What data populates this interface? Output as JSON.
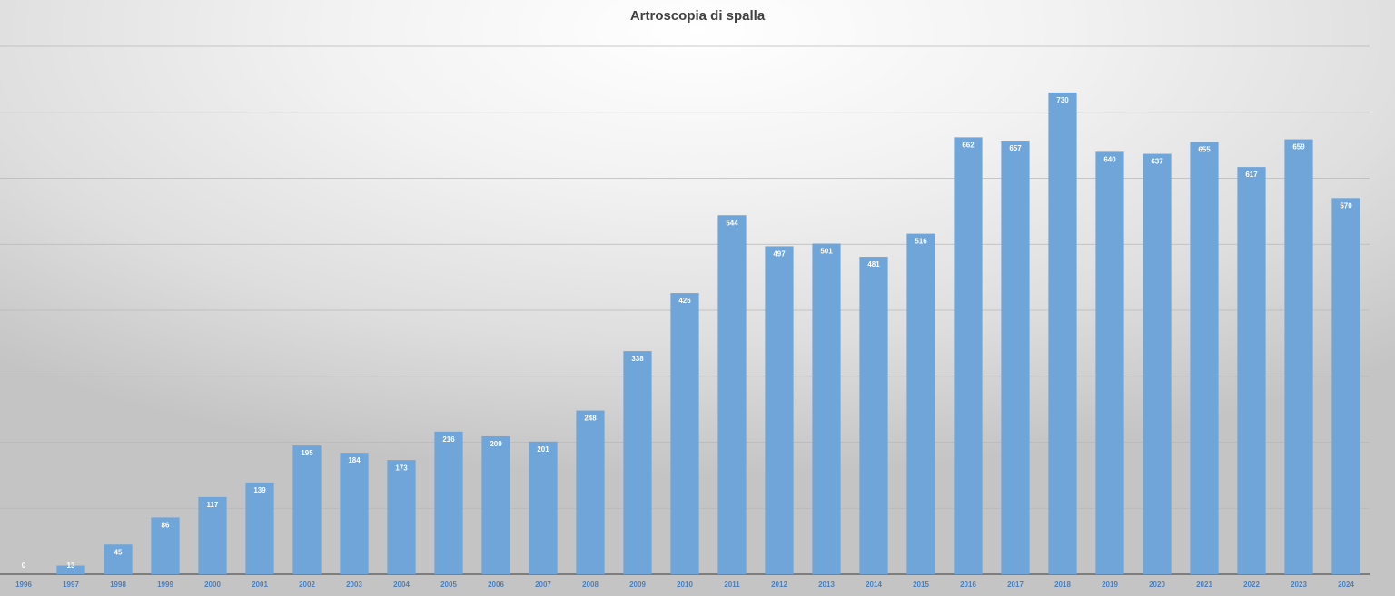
{
  "chart_data": {
    "type": "bar",
    "title": "Artroscopia di spalla",
    "categories": [
      "1996",
      "1997",
      "1998",
      "1999",
      "2000",
      "2001",
      "2002",
      "2003",
      "2004",
      "2005",
      "2006",
      "2007",
      "2008",
      "2009",
      "2010",
      "2011",
      "2012",
      "2013",
      "2014",
      "2015",
      "2016",
      "2017",
      "2018",
      "2019",
      "2020",
      "2021",
      "2022",
      "2023",
      "2024"
    ],
    "values": [
      0,
      13,
      45,
      86,
      117,
      139,
      195,
      184,
      173,
      216,
      209,
      201,
      248,
      338,
      426,
      544,
      497,
      501,
      481,
      516,
      662,
      657,
      730,
      640,
      637,
      655,
      617,
      659,
      570
    ],
    "color": "#6fa5d8",
    "ylim": [
      0,
      800
    ],
    "yticks": [
      0,
      100,
      200,
      300,
      400,
      500,
      600,
      700,
      800
    ],
    "ytick_labels": false,
    "grid": true
  }
}
